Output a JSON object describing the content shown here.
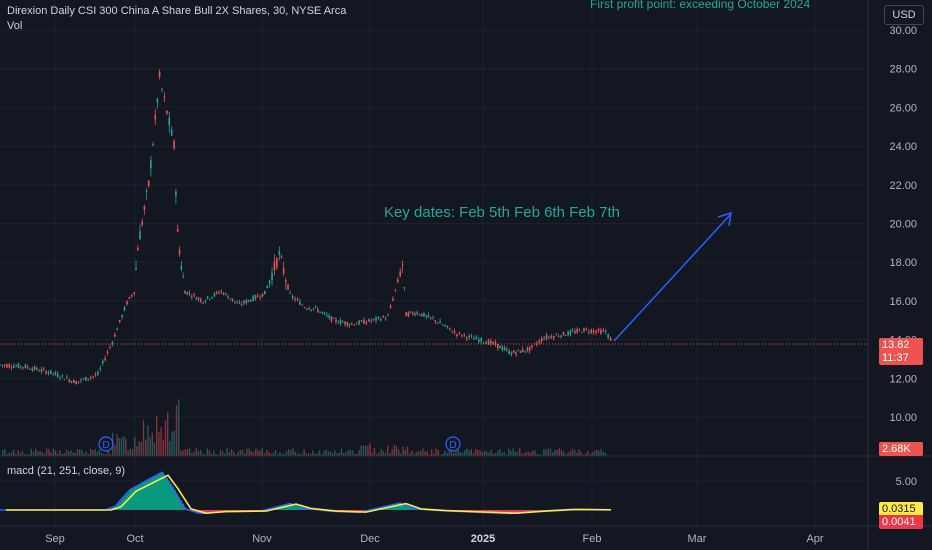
{
  "header": {
    "symbol_line": "Direxion Daily CSI 300 China A Share Bull 2X Shares, 30, NYSE Arca",
    "vol_label": "Vol",
    "macd_label": "macd (21, 251, close, 9)",
    "currency_button": "USD"
  },
  "annotations": {
    "top_note": "First profit point: exceeding October 2024",
    "key_dates": "Key dates:  Feb 5th Feb 6th Feb 7th",
    "dividend_marker": "D"
  },
  "price_badges": {
    "last_price": "13.82",
    "countdown": "11:37",
    "volume": "2.68K",
    "macd_value": "0.0315",
    "macd_hist": "0.0041"
  },
  "colors": {
    "background": "#131722",
    "up": "#26a69a",
    "down": "#ef5350",
    "annotation_text": "#26a69a",
    "arrow": "#2962ff",
    "macd_line": "#2962ff",
    "signal_line": "#ffeb3b",
    "hist_positive": "#089981",
    "hist_negative": "#f23645"
  },
  "chart_data": {
    "type": "line",
    "title": "Direxion Daily CSI 300 China A Share Bull 2X Shares, 30, NYSE Arca",
    "xlabel": "",
    "ylabel": "",
    "x_ticks": [
      "Sep",
      "Oct",
      "Nov",
      "Dec",
      "2025",
      "Feb",
      "Mar",
      "Apr"
    ],
    "y_ticks": [
      "30.00",
      "28.00",
      "26.00",
      "24.00",
      "22.00",
      "20.00",
      "18.00",
      "16.00",
      "14.00",
      "12.00",
      "10.00"
    ],
    "ylim": [
      9.5,
      30.2
    ],
    "grid": true,
    "log_scale": false,
    "series": [
      {
        "name": "",
        "x": [
          "2024-08-20",
          "2024-08-27",
          "2024-09-03",
          "2024-09-10",
          "2024-09-16",
          "2024-09-20",
          "2024-09-24",
          "2024-09-26",
          "2024-09-27",
          "2024-09-30",
          "2024-10-03",
          "2024-10-07",
          "2024-10-08",
          "2024-10-09",
          "2024-10-10",
          "2024-10-15",
          "2024-10-20",
          "2024-10-25",
          "2024-11-01",
          "2024-11-05",
          "2024-11-08",
          "2024-11-12",
          "2024-11-15",
          "2024-11-20",
          "2024-11-25",
          "2024-12-01",
          "2024-12-05",
          "2024-12-09",
          "2024-12-10",
          "2024-12-13",
          "2024-12-18",
          "2024-12-24",
          "2024-12-30",
          "2025-01-03",
          "2025-01-08",
          "2025-01-13",
          "2025-01-17",
          "2025-01-23",
          "2025-01-28",
          "2025-02-03",
          "2025-02-05"
        ],
        "y": [
          12.7,
          12.6,
          12.3,
          11.8,
          12.2,
          13.9,
          15.9,
          16.5,
          18.8,
          22.0,
          27.5,
          24.0,
          19.5,
          17.8,
          16.5,
          16.0,
          16.5,
          15.8,
          16.4,
          18.4,
          16.3,
          15.7,
          15.6,
          15.0,
          14.8,
          15.0,
          15.2,
          17.9,
          15.3,
          15.4,
          15.0,
          14.3,
          14.0,
          13.8,
          13.3,
          13.5,
          14.1,
          14.3,
          14.5,
          14.4,
          13.82
        ]
      }
    ],
    "volume_series": {
      "name": "Vol",
      "last_value": "2.68K"
    },
    "macd_series": {
      "name": "macd (21, 251, close, 9)",
      "ylim": [
        -0.8,
        7.0
      ],
      "y_ticks": [
        "5.00"
      ],
      "last_macd": "0.0315",
      "last_histogram": "0.0041"
    }
  }
}
